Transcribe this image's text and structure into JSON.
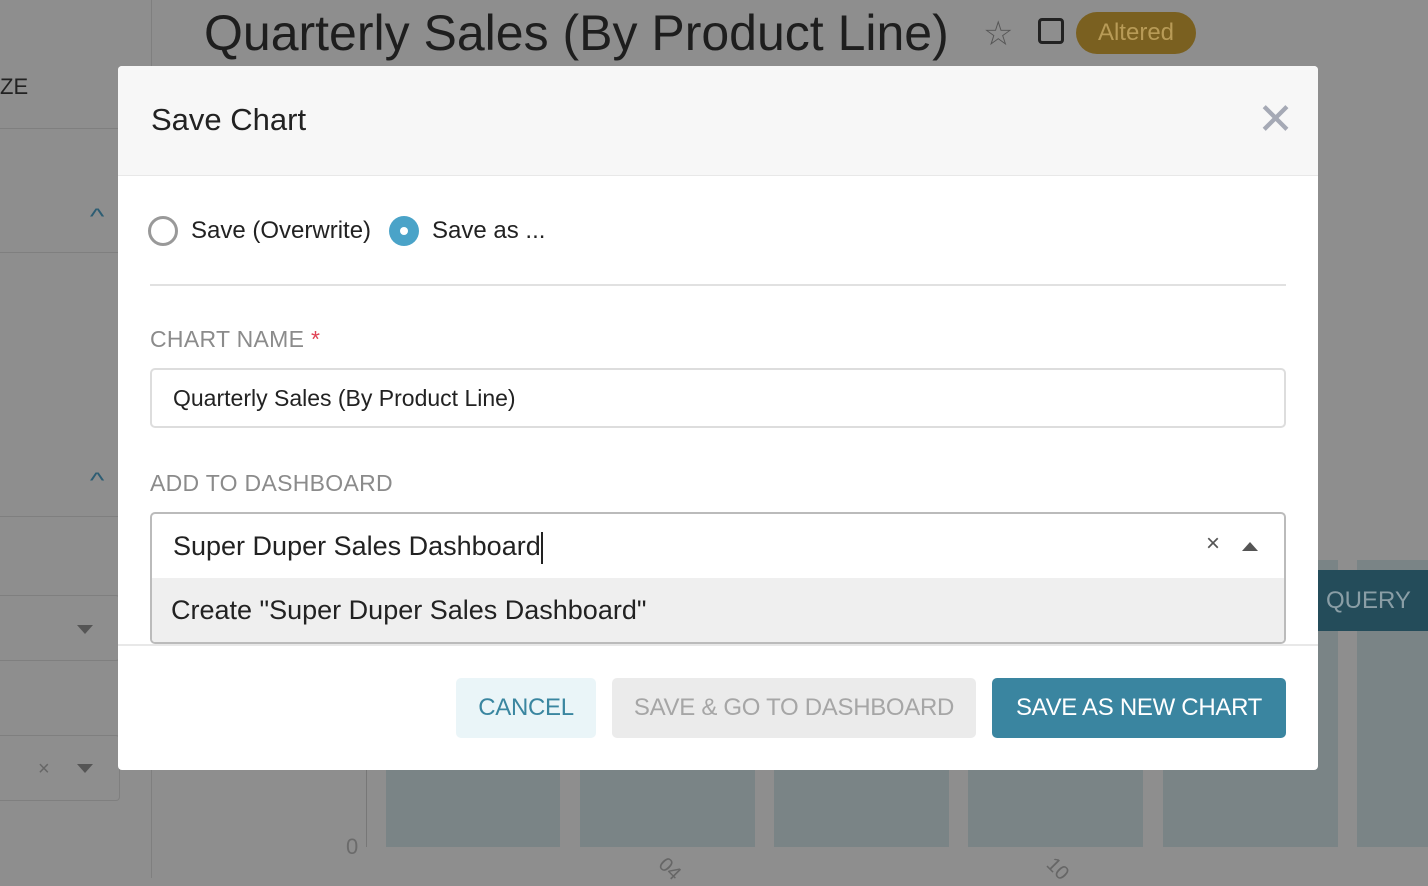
{
  "background": {
    "title": "Quarterly Sales (By Product Line)",
    "badge": "Altered",
    "sidebar_fragment": "ZE",
    "run_button_fragment": "QUERY",
    "y_tick": "0",
    "x_ticks": [
      "04",
      "10"
    ]
  },
  "modal": {
    "title": "Save Chart",
    "save_mode": {
      "options": [
        "Save (Overwrite)",
        "Save as ..."
      ],
      "selected": "Save as ..."
    },
    "chart_name": {
      "label": "CHART NAME",
      "required_mark": "*",
      "value": "Quarterly Sales (By Product Line)"
    },
    "dashboard": {
      "label": "ADD TO DASHBOARD",
      "value": "Super Duper Sales Dashboard",
      "clear": "×",
      "option": "Create \"Super Duper Sales Dashboard\""
    },
    "buttons": {
      "cancel": "CANCEL",
      "save_go": "SAVE & GO TO DASHBOARD",
      "save_new": "SAVE AS NEW CHART"
    }
  },
  "colors": {
    "primary": "#3a85a0",
    "badge": "#7a6020",
    "radio_on": "#4aa3c8"
  }
}
